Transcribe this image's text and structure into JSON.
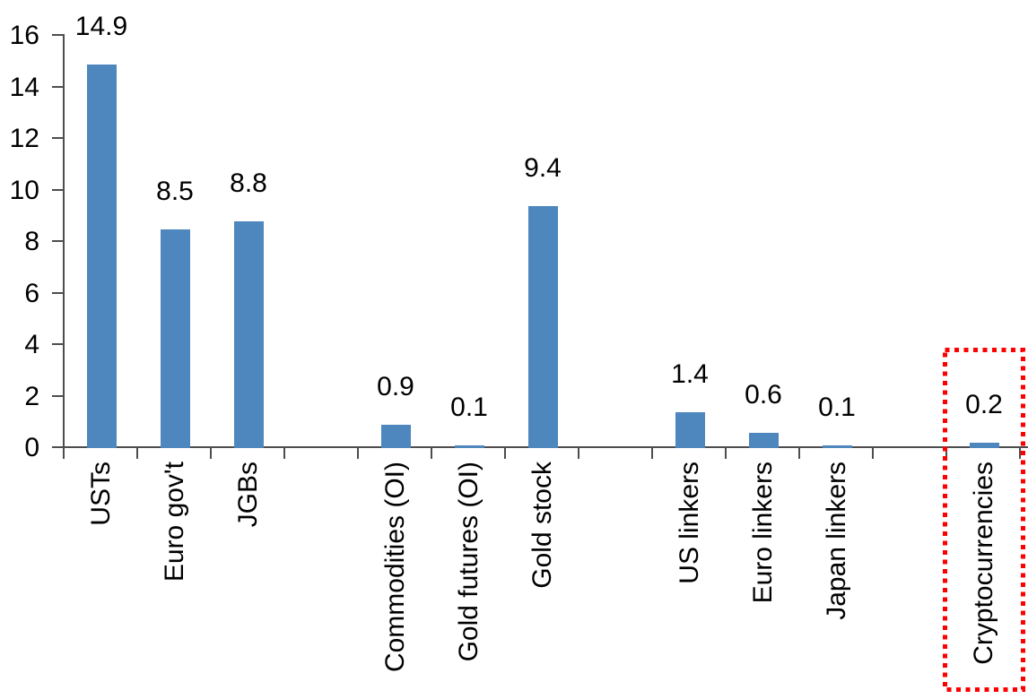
{
  "chart_data": {
    "type": "bar",
    "title": "",
    "xlabel": "",
    "ylabel": "",
    "categories": [
      "USTs",
      "Euro gov't",
      "JGBs",
      "",
      "Commodities (OI)",
      "Gold futures (OI)",
      "Gold stock",
      "",
      "US linkers",
      "Euro linkers",
      "Japan linkers",
      "",
      "Cryptocurrencies"
    ],
    "values": [
      14.9,
      8.5,
      8.8,
      null,
      0.9,
      0.1,
      9.4,
      null,
      1.4,
      0.6,
      0.1,
      null,
      0.2
    ],
    "value_labels": [
      "14.9",
      "8.5",
      "8.8",
      null,
      "0.9",
      "0.1",
      "9.4",
      null,
      "1.4",
      "0.6",
      "0.1",
      null,
      "0.2"
    ],
    "ylim": [
      0,
      16
    ],
    "yticks": [
      0,
      2,
      4,
      6,
      8,
      10,
      12,
      14,
      16
    ],
    "ytick_labels": [
      "0",
      "2",
      "4",
      "6",
      "8",
      "10",
      "12",
      "14",
      "16"
    ],
    "grid": false,
    "legend": "none",
    "bar_color": "#4e86be",
    "axis_color": "#4d4d4d",
    "label_color": "#000000",
    "highlight": {
      "category": "Cryptocurrencies",
      "style": "red-dotted-rectangle",
      "color": "#fe0000"
    }
  }
}
